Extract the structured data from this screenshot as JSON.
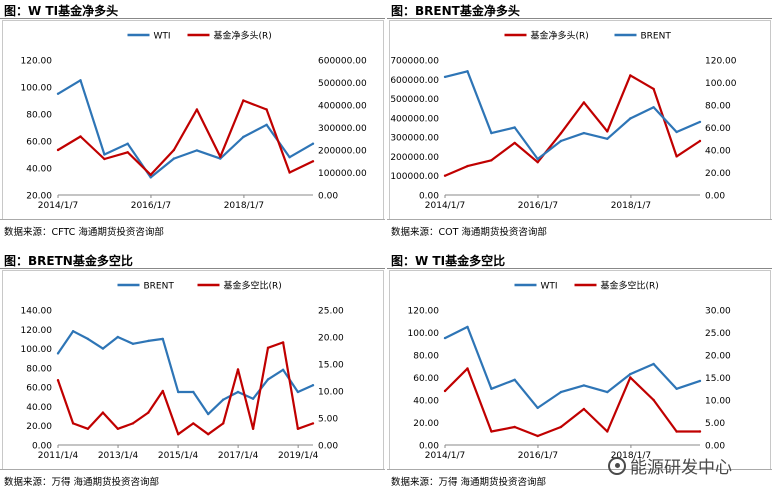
{
  "watermark": {
    "text": "能源研发中心",
    "icon": "wechat-icon"
  },
  "colors": {
    "blue": "#2E75B6",
    "red": "#C00000"
  },
  "chart_data": [
    {
      "id": "p1",
      "type": "line",
      "title": "图：W TI基金净多头",
      "source": "数据来源：CFTC  海通期货投资咨询部",
      "legend": {
        "placement": "top",
        "entries": [
          "WTI",
          "基金净多头(R)"
        ]
      },
      "x": [
        "2014/1/7",
        "2014/7/1",
        "2015/1/6",
        "2015/7/7",
        "2016/1/5",
        "2016/7/5",
        "2017/1/3",
        "2017/7/4",
        "2018/1/2",
        "2018/7/3",
        "2019/1/1",
        "2019/7/2"
      ],
      "x_ticks": [
        "2014/1/7",
        "2016/1/7",
        "2018/1/7"
      ],
      "left_axis": {
        "min": 20,
        "max": 120,
        "ticks": [
          "20.00",
          "40.00",
          "60.00",
          "80.00",
          "100.00",
          "120.00"
        ]
      },
      "right_axis": {
        "min": 0,
        "max": 600000,
        "ticks": [
          "0.00",
          "100000.00",
          "200000.00",
          "300000.00",
          "400000.00",
          "500000.00",
          "600000.00"
        ]
      },
      "series": [
        {
          "name": "WTI",
          "axis": "left",
          "color": "#2E75B6",
          "values": [
            95,
            105,
            50,
            58,
            33,
            47,
            53,
            47,
            63,
            72,
            48,
            58
          ]
        },
        {
          "name": "基金净多头(R)",
          "axis": "right",
          "color": "#C00000",
          "values": [
            200000,
            260000,
            160000,
            190000,
            90000,
            200000,
            380000,
            170000,
            420000,
            380000,
            100000,
            150000
          ]
        }
      ]
    },
    {
      "id": "p2",
      "type": "line",
      "title": "图：BRENT基金净多头",
      "source": "数据来源：COT  海通期货投资咨询部",
      "legend": {
        "placement": "top",
        "entries": [
          "基金净多头(R)",
          "BRENT"
        ]
      },
      "x": [
        "2014/1/7",
        "2014/7/1",
        "2015/1/6",
        "2015/7/7",
        "2016/1/5",
        "2016/7/5",
        "2017/1/3",
        "2017/7/4",
        "2018/1/2",
        "2018/7/3",
        "2019/1/1",
        "2019/7/2"
      ],
      "x_ticks": [
        "2014/1/7",
        "2016/1/7",
        "2018/1/7"
      ],
      "left_axis": {
        "min": 0,
        "max": 700000,
        "ticks": [
          "0.00",
          "100000.00",
          "200000.00",
          "300000.00",
          "400000.00",
          "500000.00",
          "600000.00",
          "700000.00"
        ]
      },
      "right_axis": {
        "min": 0,
        "max": 120,
        "ticks": [
          "0.00",
          "20.00",
          "40.00",
          "60.00",
          "80.00",
          "100.00",
          "120.00"
        ]
      },
      "series": [
        {
          "name": "基金净多头(R)",
          "axis": "left",
          "color": "#C00000",
          "values": [
            100000,
            150000,
            180000,
            270000,
            170000,
            320000,
            480000,
            330000,
            620000,
            550000,
            200000,
            280000
          ]
        },
        {
          "name": "BRENT",
          "axis": "right",
          "color": "#2E75B6",
          "values": [
            105,
            110,
            55,
            60,
            32,
            48,
            55,
            50,
            68,
            78,
            56,
            65
          ]
        }
      ]
    },
    {
      "id": "p3",
      "type": "line",
      "title": "图：BRETN基金多空比",
      "source": "数据来源：万得  海通期货投资咨询部",
      "legend": {
        "placement": "top",
        "entries": [
          "BRENT",
          "基金多空比(R)"
        ]
      },
      "x": [
        "2011/1/4",
        "2011/7/5",
        "2012/1/3",
        "2012/7/3",
        "2013/1/1",
        "2013/7/2",
        "2014/1/7",
        "2014/7/1",
        "2015/1/6",
        "2015/7/7",
        "2016/1/5",
        "2016/7/5",
        "2017/1/3",
        "2017/7/4",
        "2018/1/2",
        "2018/7/3",
        "2019/1/1",
        "2019/7/2"
      ],
      "x_ticks": [
        "2011/1/4",
        "2013/1/4",
        "2015/1/4",
        "2017/1/4",
        "2019/1/4"
      ],
      "left_axis": {
        "min": 0,
        "max": 140,
        "ticks": [
          "0.00",
          "20.00",
          "40.00",
          "60.00",
          "80.00",
          "100.00",
          "120.00",
          "140.00"
        ]
      },
      "right_axis": {
        "min": 0,
        "max": 25,
        "ticks": [
          "0.00",
          "5.00",
          "10.00",
          "15.00",
          "20.00",
          "25.00"
        ]
      },
      "series": [
        {
          "name": "BRENT",
          "axis": "left",
          "color": "#2E75B6",
          "values": [
            95,
            118,
            110,
            100,
            112,
            105,
            108,
            110,
            55,
            55,
            32,
            47,
            55,
            48,
            68,
            78,
            55,
            62
          ]
        },
        {
          "name": "基金多空比(R)",
          "axis": "right",
          "color": "#C00000",
          "values": [
            12,
            4,
            3,
            6,
            3,
            4,
            6,
            10,
            2,
            4,
            2,
            4,
            14,
            3,
            18,
            19,
            3,
            4
          ]
        }
      ]
    },
    {
      "id": "p4",
      "type": "line",
      "title": "图：W TI基金多空比",
      "source": "数据来源：万得  海通期货投资咨询部",
      "legend": {
        "placement": "top",
        "entries": [
          "WTI",
          "基金多空比(R)"
        ]
      },
      "x": [
        "2014/1/7",
        "2014/7/1",
        "2015/1/6",
        "2015/7/7",
        "2016/1/5",
        "2016/7/5",
        "2017/1/3",
        "2017/7/4",
        "2018/1/2",
        "2018/7/3",
        "2019/1/1",
        "2019/7/2"
      ],
      "x_ticks": [
        "2014/1/7",
        "2016/1/7",
        "2018/1/7"
      ],
      "left_axis": {
        "min": 0,
        "max": 120,
        "ticks": [
          "0.00",
          "20.00",
          "40.00",
          "60.00",
          "80.00",
          "100.00",
          "120.00"
        ]
      },
      "right_axis": {
        "min": 0,
        "max": 30,
        "ticks": [
          "0.00",
          "5.00",
          "10.00",
          "15.00",
          "20.00",
          "25.00",
          "30.00"
        ]
      },
      "series": [
        {
          "name": "WTI",
          "axis": "left",
          "color": "#2E75B6",
          "values": [
            95,
            105,
            50,
            58,
            33,
            47,
            53,
            47,
            63,
            72,
            50,
            57
          ]
        },
        {
          "name": "基金多空比(R)",
          "axis": "right",
          "color": "#C00000",
          "values": [
            12,
            17,
            3,
            4,
            2,
            4,
            8,
            3,
            15,
            10,
            3,
            3
          ]
        }
      ]
    }
  ]
}
